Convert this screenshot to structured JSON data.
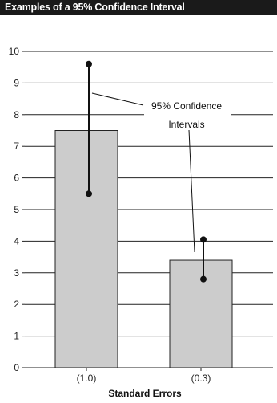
{
  "chart_data": {
    "type": "bar",
    "title": "Examples of a 95% Confidence Interval",
    "xlabel": "Standard Errors",
    "ylabel": "",
    "categories": [
      "(1.0)",
      "(0.3)"
    ],
    "values": [
      7.5,
      3.4
    ],
    "error_intervals": [
      {
        "low": 5.5,
        "high": 9.6
      },
      {
        "low": 2.8,
        "high": 4.05
      }
    ],
    "ylim": [
      0,
      10
    ],
    "yticks": [
      0,
      1,
      2,
      3,
      4,
      5,
      6,
      7,
      8,
      9,
      10
    ],
    "grid": true,
    "annotation": [
      "95% Confidence",
      "Intervals"
    ],
    "colors": {
      "bar": "#cccccc",
      "bar_edge": "#222222",
      "grid": "#222222",
      "title_bg": "#1a1a1a"
    }
  }
}
